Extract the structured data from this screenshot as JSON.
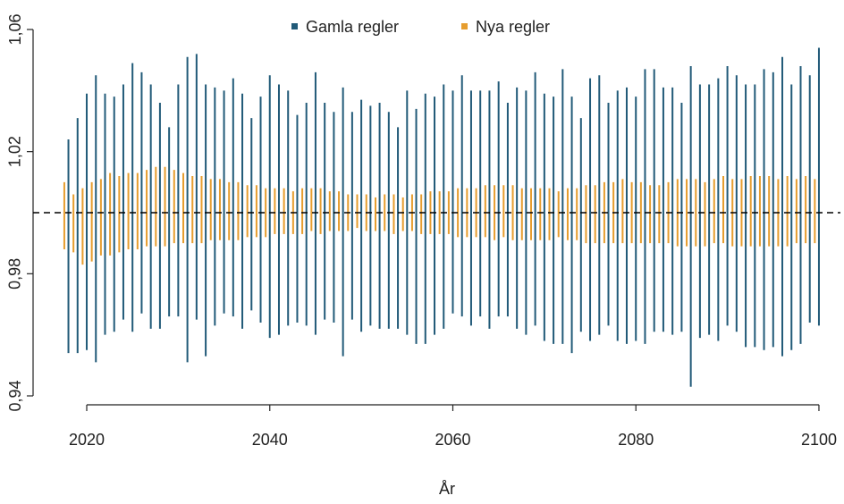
{
  "chart_data": {
    "type": "range",
    "xlabel": "År",
    "x": [
      2018,
      2019,
      2020,
      2021,
      2022,
      2023,
      2024,
      2025,
      2026,
      2027,
      2028,
      2029,
      2030,
      2031,
      2032,
      2033,
      2034,
      2035,
      2036,
      2037,
      2038,
      2039,
      2040,
      2041,
      2042,
      2043,
      2044,
      2045,
      2046,
      2047,
      2048,
      2049,
      2050,
      2051,
      2052,
      2053,
      2054,
      2055,
      2056,
      2057,
      2058,
      2059,
      2060,
      2061,
      2062,
      2063,
      2064,
      2065,
      2066,
      2067,
      2068,
      2069,
      2070,
      2071,
      2072,
      2073,
      2074,
      2075,
      2076,
      2077,
      2078,
      2079,
      2080,
      2081,
      2082,
      2083,
      2084,
      2085,
      2086,
      2087,
      2088,
      2089,
      2090,
      2091,
      2092,
      2093,
      2094,
      2095,
      2096,
      2097,
      2098,
      2099,
      2100
    ],
    "series": [
      {
        "name": "Gamla regler",
        "color": "#215a78",
        "high": [
          1.024,
          1.031,
          1.039,
          1.045,
          1.039,
          1.038,
          1.042,
          1.049,
          1.046,
          1.042,
          1.036,
          1.028,
          1.042,
          1.051,
          1.052,
          1.042,
          1.041,
          1.04,
          1.044,
          1.039,
          1.031,
          1.038,
          1.045,
          1.042,
          1.04,
          1.032,
          1.036,
          1.046,
          1.036,
          1.033,
          1.041,
          1.033,
          1.037,
          1.035,
          1.036,
          1.033,
          1.028,
          1.04,
          1.034,
          1.039,
          1.038,
          1.042,
          1.04,
          1.045,
          1.04,
          1.04,
          1.04,
          1.043,
          1.036,
          1.041,
          1.04,
          1.046,
          1.039,
          1.038,
          1.047,
          1.038,
          1.031,
          1.044,
          1.045,
          1.036,
          1.04,
          1.041,
          1.038,
          1.047,
          1.047,
          1.041,
          1.041,
          1.036,
          1.048,
          1.042,
          1.042,
          1.044,
          1.048,
          1.045,
          1.042,
          1.042,
          1.047,
          1.046,
          1.051,
          1.042,
          1.048,
          1.045,
          1.054
        ],
        "low": [
          0.954,
          0.954,
          0.955,
          0.951,
          0.96,
          0.961,
          0.965,
          0.961,
          0.967,
          0.962,
          0.962,
          0.966,
          0.966,
          0.951,
          0.965,
          0.953,
          0.963,
          0.967,
          0.966,
          0.962,
          0.968,
          0.964,
          0.959,
          0.96,
          0.963,
          0.964,
          0.963,
          0.96,
          0.965,
          0.964,
          0.953,
          0.965,
          0.961,
          0.963,
          0.962,
          0.962,
          0.962,
          0.96,
          0.957,
          0.957,
          0.96,
          0.962,
          0.967,
          0.966,
          0.963,
          0.966,
          0.962,
          0.966,
          0.966,
          0.962,
          0.96,
          0.963,
          0.958,
          0.957,
          0.957,
          0.954,
          0.961,
          0.958,
          0.96,
          0.963,
          0.958,
          0.957,
          0.958,
          0.957,
          0.961,
          0.961,
          0.96,
          0.961,
          0.943,
          0.959,
          0.96,
          0.958,
          0.963,
          0.961,
          0.956,
          0.956,
          0.955,
          0.956,
          0.953,
          0.955,
          0.957,
          0.964,
          0.963
        ]
      },
      {
        "name": "Nya regler",
        "color": "#e69d2e",
        "high": [
          1.01,
          1.006,
          1.008,
          1.01,
          1.011,
          1.013,
          1.012,
          1.013,
          1.013,
          1.014,
          1.015,
          1.015,
          1.014,
          1.013,
          1.012,
          1.012,
          1.011,
          1.011,
          1.01,
          1.01,
          1.009,
          1.009,
          1.008,
          1.008,
          1.008,
          1.007,
          1.008,
          1.008,
          1.008,
          1.007,
          1.007,
          1.006,
          1.006,
          1.006,
          1.005,
          1.006,
          1.006,
          1.005,
          1.006,
          1.006,
          1.007,
          1.007,
          1.007,
          1.008,
          1.008,
          1.008,
          1.009,
          1.009,
          1.009,
          1.009,
          1.008,
          1.008,
          1.008,
          1.008,
          1.007,
          1.008,
          1.008,
          1.009,
          1.009,
          1.01,
          1.01,
          1.011,
          1.01,
          1.01,
          1.009,
          1.009,
          1.01,
          1.011,
          1.011,
          1.011,
          1.01,
          1.011,
          1.012,
          1.011,
          1.011,
          1.012,
          1.012,
          1.012,
          1.011,
          1.012,
          1.011,
          1.012,
          1.011
        ],
        "low": [
          0.988,
          0.987,
          0.983,
          0.984,
          0.986,
          0.986,
          0.987,
          0.988,
          0.988,
          0.989,
          0.989,
          0.989,
          0.99,
          0.99,
          0.99,
          0.99,
          0.991,
          0.991,
          0.991,
          0.991,
          0.992,
          0.992,
          0.992,
          0.993,
          0.993,
          0.993,
          0.993,
          0.994,
          0.993,
          0.994,
          0.994,
          0.994,
          0.995,
          0.994,
          0.994,
          0.994,
          0.993,
          0.994,
          0.994,
          0.993,
          0.993,
          0.993,
          0.993,
          0.992,
          0.992,
          0.992,
          0.992,
          0.991,
          0.992,
          0.991,
          0.991,
          0.991,
          0.991,
          0.991,
          0.992,
          0.991,
          0.991,
          0.99,
          0.99,
          0.99,
          0.99,
          0.99,
          0.99,
          0.99,
          0.99,
          0.99,
          0.99,
          0.989,
          0.989,
          0.989,
          0.989,
          0.99,
          0.99,
          0.989,
          0.989,
          0.989,
          0.989,
          0.989,
          0.989,
          0.989,
          0.99,
          0.99,
          0.99
        ]
      }
    ],
    "hline": 1,
    "xlim": [
      2017,
      2101
    ],
    "xticks": [
      2020,
      2040,
      2060,
      2080,
      2100
    ],
    "ylim": [
      0.94,
      1.06
    ],
    "yticks": [
      {
        "value": 0.94,
        "label": "0,94"
      },
      {
        "value": 0.98,
        "label": "0,98"
      },
      {
        "value": 1.02,
        "label": "1,02"
      },
      {
        "value": 1.06,
        "label": "1,06"
      }
    ],
    "legend": "top"
  }
}
